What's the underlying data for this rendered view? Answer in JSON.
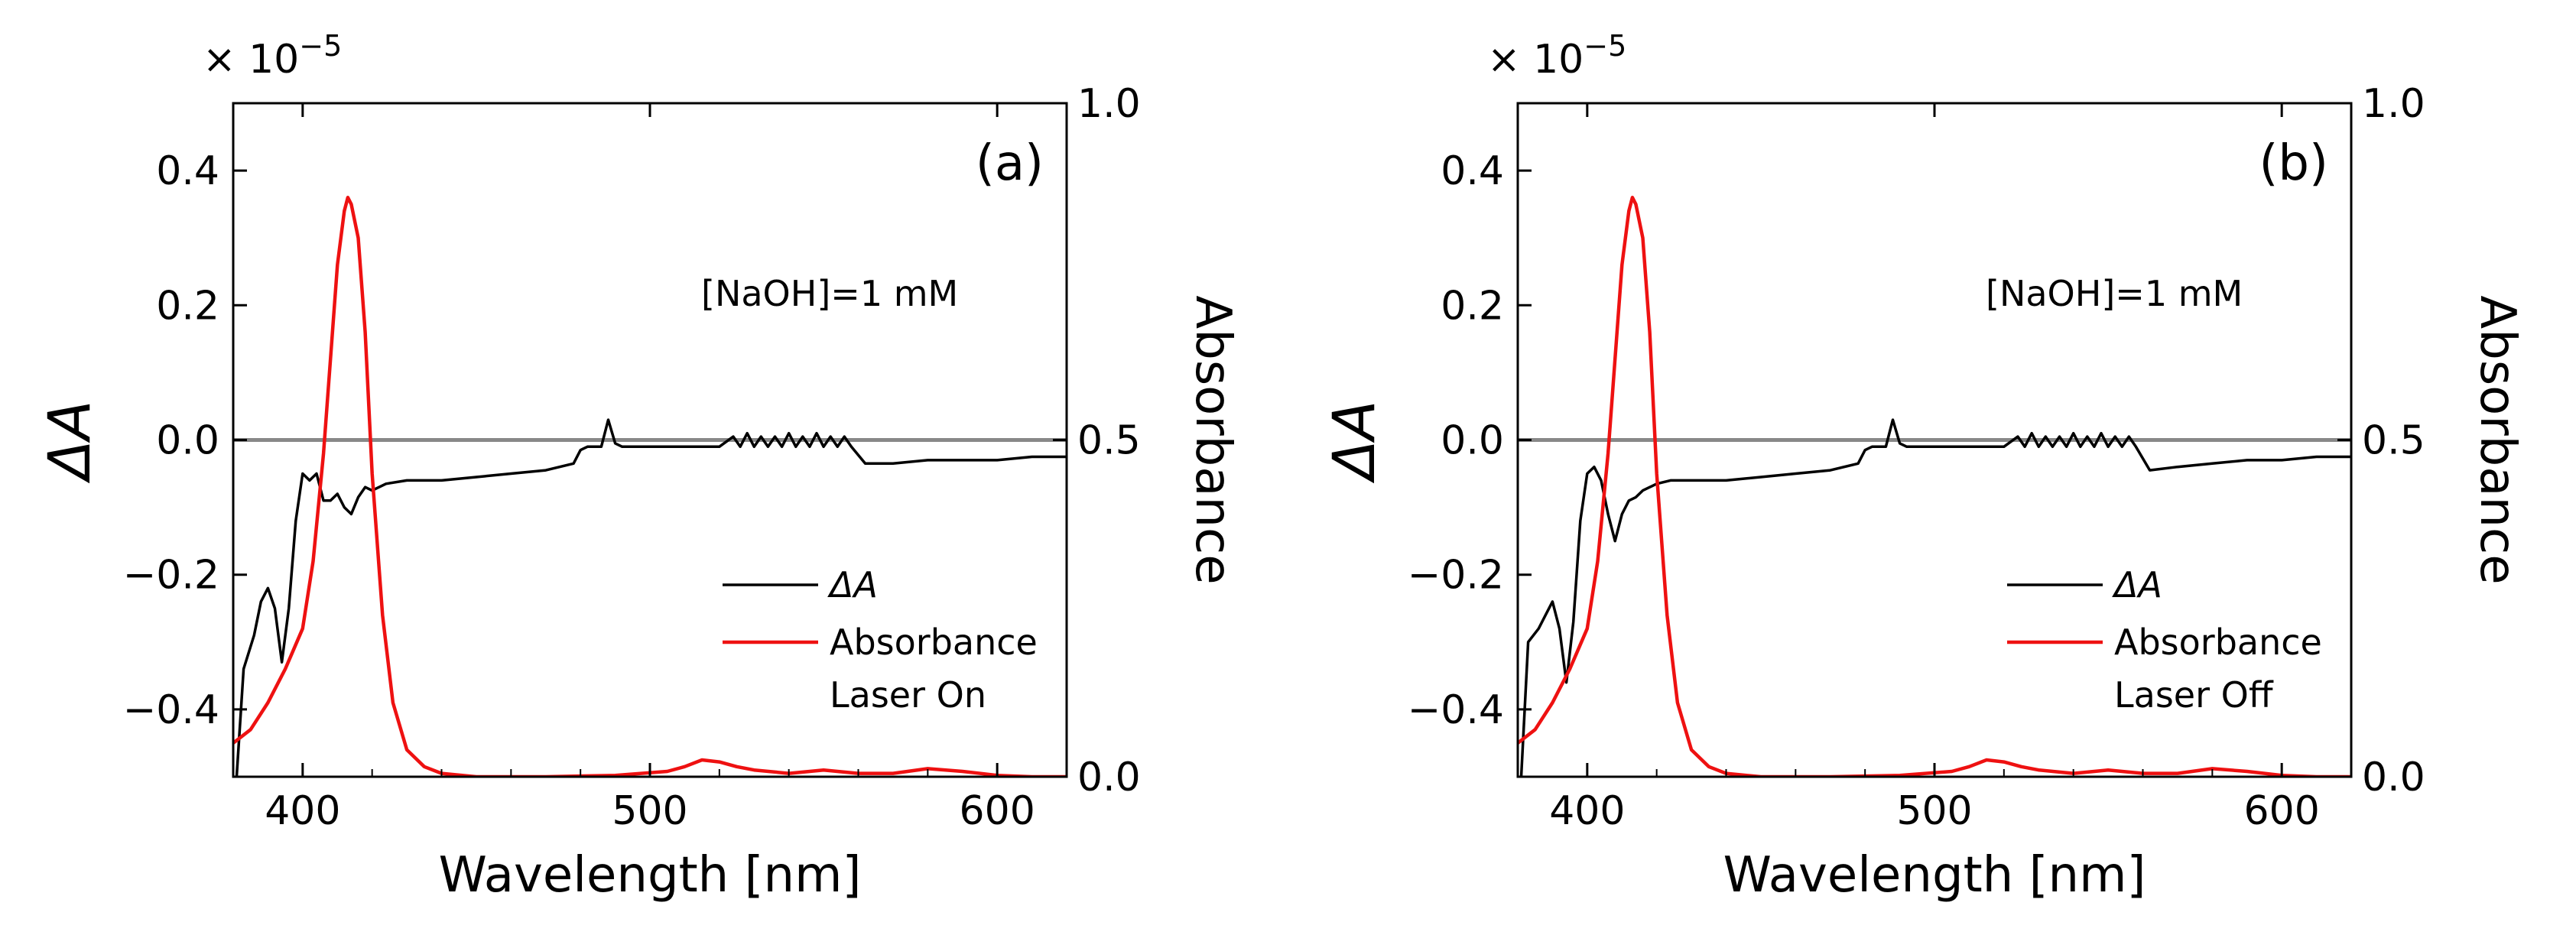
{
  "chart_data": [
    {
      "type": "line",
      "panel_label": "(a)",
      "annotation": "[NaOH]=1 mM",
      "condition": "Laser On",
      "xlabel": "Wavelength [nm]",
      "ylabel_left": "ΔA",
      "ylabel_right": "Absorbance",
      "y_multiplier": "× 10",
      "y_multiplier_exp": "−5",
      "xlim": [
        380,
        620
      ],
      "ylim_left": [
        -0.5,
        0.5
      ],
      "ylim_right": [
        0.0,
        1.0
      ],
      "xticks": [
        400,
        500,
        600
      ],
      "xtick_labels": [
        "400",
        "500",
        "600"
      ],
      "yticks_left": [
        -0.4,
        -0.2,
        0.0,
        0.2,
        0.4
      ],
      "ytick_labels_left": [
        "−0.4",
        "−0.2",
        "0.0",
        "0.2",
        "0.4"
      ],
      "yticks_right": [
        0.0,
        0.5,
        1.0
      ],
      "ytick_labels_right": [
        "0.0",
        "0.5",
        "1.0"
      ],
      "grid": false,
      "legend_position": "bottom-right",
      "zero_line": 0.0,
      "zero_line_color": "#888888",
      "series": [
        {
          "name": "ΔA",
          "axis": "left",
          "color": "#000000",
          "x": [
            381,
            383,
            386,
            388,
            390,
            392,
            394,
            396,
            398,
            400,
            402,
            404,
            406,
            408,
            410,
            412,
            414,
            416,
            418,
            420,
            424,
            430,
            440,
            450,
            460,
            470,
            478,
            480,
            482,
            484,
            486,
            488,
            490,
            492,
            496,
            500,
            510,
            520,
            524,
            526,
            528,
            530,
            532,
            534,
            536,
            538,
            540,
            542,
            544,
            546,
            548,
            550,
            552,
            554,
            556,
            558,
            562,
            570,
            580,
            590,
            600,
            610,
            620
          ],
          "y": [
            -0.5,
            -0.34,
            -0.29,
            -0.24,
            -0.22,
            -0.25,
            -0.33,
            -0.25,
            -0.12,
            -0.05,
            -0.06,
            -0.05,
            -0.09,
            -0.09,
            -0.08,
            -0.1,
            -0.11,
            -0.085,
            -0.07,
            -0.075,
            -0.065,
            -0.06,
            -0.06,
            -0.055,
            -0.05,
            -0.045,
            -0.035,
            -0.015,
            -0.01,
            -0.01,
            -0.01,
            0.03,
            -0.005,
            -0.01,
            -0.01,
            -0.01,
            -0.01,
            -0.01,
            0.005,
            -0.01,
            0.01,
            -0.01,
            0.005,
            -0.01,
            0.005,
            -0.01,
            0.01,
            -0.01,
            0.005,
            -0.01,
            0.01,
            -0.01,
            0.005,
            -0.01,
            0.005,
            -0.01,
            -0.035,
            -0.035,
            -0.03,
            -0.03,
            -0.03,
            -0.025,
            -0.025
          ]
        },
        {
          "name": "Absorbance",
          "axis": "right",
          "color": "#ee1111",
          "x": [
            380,
            385,
            390,
            395,
            400,
            403,
            406,
            408,
            410,
            412,
            413,
            414,
            416,
            418,
            420,
            423,
            426,
            430,
            435,
            440,
            450,
            470,
            490,
            505,
            510,
            515,
            520,
            525,
            530,
            540,
            550,
            560,
            570,
            580,
            590,
            600,
            610,
            620
          ],
          "y": [
            0.05,
            0.07,
            0.11,
            0.16,
            0.22,
            0.32,
            0.48,
            0.62,
            0.76,
            0.84,
            0.86,
            0.85,
            0.8,
            0.66,
            0.45,
            0.24,
            0.11,
            0.04,
            0.015,
            0.005,
            0.0,
            0.0,
            0.002,
            0.008,
            0.015,
            0.025,
            0.022,
            0.015,
            0.01,
            0.005,
            0.01,
            0.005,
            0.005,
            0.012,
            0.008,
            0.002,
            0.0,
            0.0
          ]
        }
      ]
    },
    {
      "type": "line",
      "panel_label": "(b)",
      "annotation": "[NaOH]=1 mM",
      "condition": "Laser Off",
      "xlabel": "Wavelength [nm]",
      "ylabel_left": "ΔA",
      "ylabel_right": "Absorbance",
      "y_multiplier": "× 10",
      "y_multiplier_exp": "−5",
      "xlim": [
        380,
        620
      ],
      "ylim_left": [
        -0.5,
        0.5
      ],
      "ylim_right": [
        0.0,
        1.0
      ],
      "xticks": [
        400,
        500,
        600
      ],
      "xtick_labels": [
        "400",
        "500",
        "600"
      ],
      "yticks_left": [
        -0.4,
        -0.2,
        0.0,
        0.2,
        0.4
      ],
      "ytick_labels_left": [
        "−0.4",
        "−0.2",
        "0.0",
        "0.2",
        "0.4"
      ],
      "yticks_right": [
        0.0,
        0.5,
        1.0
      ],
      "ytick_labels_right": [
        "0.0",
        "0.5",
        "1.0"
      ],
      "grid": false,
      "legend_position": "bottom-right",
      "zero_line": 0.0,
      "zero_line_color": "#888888",
      "series": [
        {
          "name": "ΔA",
          "axis": "left",
          "color": "#000000",
          "x": [
            381,
            383,
            386,
            388,
            390,
            392,
            394,
            396,
            398,
            400,
            402,
            404,
            406,
            408,
            410,
            412,
            414,
            416,
            418,
            420,
            424,
            430,
            440,
            450,
            460,
            470,
            478,
            480,
            482,
            484,
            486,
            488,
            490,
            492,
            496,
            500,
            510,
            520,
            524,
            526,
            528,
            530,
            532,
            534,
            536,
            538,
            540,
            542,
            544,
            546,
            548,
            550,
            552,
            554,
            556,
            558,
            562,
            570,
            580,
            590,
            600,
            610,
            620
          ],
          "y": [
            -0.5,
            -0.3,
            -0.28,
            -0.26,
            -0.24,
            -0.28,
            -0.36,
            -0.27,
            -0.12,
            -0.05,
            -0.04,
            -0.06,
            -0.11,
            -0.15,
            -0.11,
            -0.09,
            -0.085,
            -0.075,
            -0.07,
            -0.065,
            -0.06,
            -0.06,
            -0.06,
            -0.055,
            -0.05,
            -0.045,
            -0.035,
            -0.015,
            -0.01,
            -0.01,
            -0.01,
            0.03,
            -0.005,
            -0.01,
            -0.01,
            -0.01,
            -0.01,
            -0.01,
            0.005,
            -0.01,
            0.01,
            -0.01,
            0.005,
            -0.01,
            0.005,
            -0.01,
            0.01,
            -0.01,
            0.005,
            -0.01,
            0.01,
            -0.01,
            0.005,
            -0.01,
            0.005,
            -0.01,
            -0.045,
            -0.04,
            -0.035,
            -0.03,
            -0.03,
            -0.025,
            -0.025
          ]
        },
        {
          "name": "Absorbance",
          "axis": "right",
          "color": "#ee1111",
          "x": [
            380,
            385,
            390,
            395,
            400,
            403,
            406,
            408,
            410,
            412,
            413,
            414,
            416,
            418,
            420,
            423,
            426,
            430,
            435,
            440,
            450,
            470,
            490,
            505,
            510,
            515,
            520,
            525,
            530,
            540,
            550,
            560,
            570,
            580,
            590,
            600,
            610,
            620
          ],
          "y": [
            0.05,
            0.07,
            0.11,
            0.16,
            0.22,
            0.32,
            0.48,
            0.62,
            0.76,
            0.84,
            0.86,
            0.85,
            0.8,
            0.66,
            0.45,
            0.24,
            0.11,
            0.04,
            0.015,
            0.005,
            0.0,
            0.0,
            0.002,
            0.008,
            0.015,
            0.025,
            0.022,
            0.015,
            0.01,
            0.005,
            0.01,
            0.005,
            0.005,
            0.012,
            0.008,
            0.002,
            0.0,
            0.0
          ]
        }
      ]
    }
  ]
}
